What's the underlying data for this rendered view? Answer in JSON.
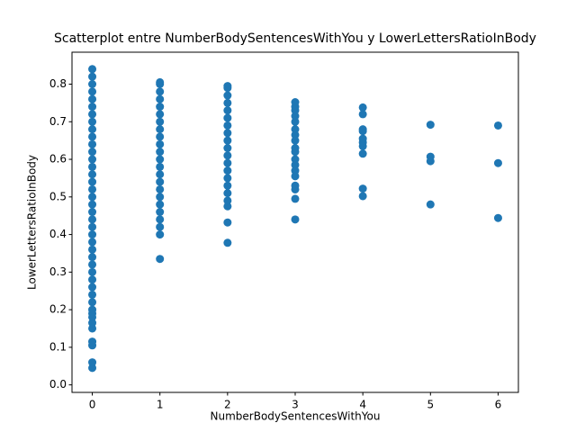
{
  "chart_data": {
    "type": "scatter",
    "title": "Scatterplot entre NumberBodySentencesWithYou y LowerLettersRatioInBody",
    "xlabel": "NumberBodySentencesWithYou",
    "ylabel": "LowerLettersRatioInBody",
    "color": "#1f77b4",
    "xlim": [
      -0.3,
      6.3
    ],
    "ylim": [
      -0.02,
      0.885
    ],
    "xticks": [
      0,
      1,
      2,
      3,
      4,
      5,
      6
    ],
    "yticks": [
      {
        "value": 0,
        "label": "0.0"
      },
      0.1,
      0.2,
      0.3,
      0.4,
      0.5,
      0.6,
      0.7,
      0.8
    ],
    "x": [
      0,
      0,
      0,
      0,
      0,
      0,
      0,
      0,
      0,
      0,
      0,
      0,
      0,
      0,
      0,
      0,
      0,
      0,
      0,
      0,
      0,
      0,
      0,
      0,
      0,
      0,
      0,
      0,
      0,
      0,
      0,
      0,
      0,
      0,
      0,
      0,
      0,
      0,
      0,
      0,
      0,
      1,
      1,
      1,
      1,
      1,
      1,
      1,
      1,
      1,
      1,
      1,
      1,
      1,
      1,
      1,
      1,
      1,
      1,
      1,
      1,
      1,
      1,
      1,
      2,
      2,
      2,
      2,
      2,
      2,
      2,
      2,
      2,
      2,
      2,
      2,
      2,
      2,
      2,
      2,
      2,
      2,
      2,
      2,
      3,
      3,
      3,
      3,
      3,
      3,
      3,
      3,
      3,
      3,
      3,
      3,
      3,
      3,
      3,
      3,
      3,
      3,
      4,
      4,
      4,
      4,
      4,
      4,
      4,
      4,
      4,
      4,
      5,
      5,
      5,
      5,
      6,
      6,
      6
    ],
    "values": [
      0.045,
      0.06,
      0.105,
      0.115,
      0.15,
      0.165,
      0.18,
      0.19,
      0.2,
      0.22,
      0.24,
      0.26,
      0.28,
      0.3,
      0.32,
      0.34,
      0.36,
      0.38,
      0.4,
      0.42,
      0.44,
      0.46,
      0.48,
      0.5,
      0.52,
      0.54,
      0.56,
      0.58,
      0.6,
      0.62,
      0.64,
      0.66,
      0.68,
      0.7,
      0.72,
      0.74,
      0.76,
      0.78,
      0.8,
      0.82,
      0.84,
      0.335,
      0.4,
      0.42,
      0.44,
      0.46,
      0.48,
      0.5,
      0.52,
      0.54,
      0.56,
      0.58,
      0.6,
      0.62,
      0.64,
      0.66,
      0.68,
      0.7,
      0.72,
      0.74,
      0.76,
      0.78,
      0.8,
      0.805,
      0.378,
      0.432,
      0.475,
      0.49,
      0.51,
      0.53,
      0.55,
      0.57,
      0.59,
      0.61,
      0.63,
      0.65,
      0.67,
      0.69,
      0.71,
      0.73,
      0.75,
      0.77,
      0.79,
      0.795,
      0.44,
      0.495,
      0.52,
      0.53,
      0.555,
      0.57,
      0.585,
      0.6,
      0.62,
      0.63,
      0.65,
      0.665,
      0.68,
      0.7,
      0.715,
      0.73,
      0.74,
      0.752,
      0.502,
      0.522,
      0.615,
      0.635,
      0.645,
      0.655,
      0.675,
      0.68,
      0.72,
      0.738,
      0.48,
      0.595,
      0.607,
      0.692,
      0.444,
      0.59,
      0.69
    ]
  }
}
